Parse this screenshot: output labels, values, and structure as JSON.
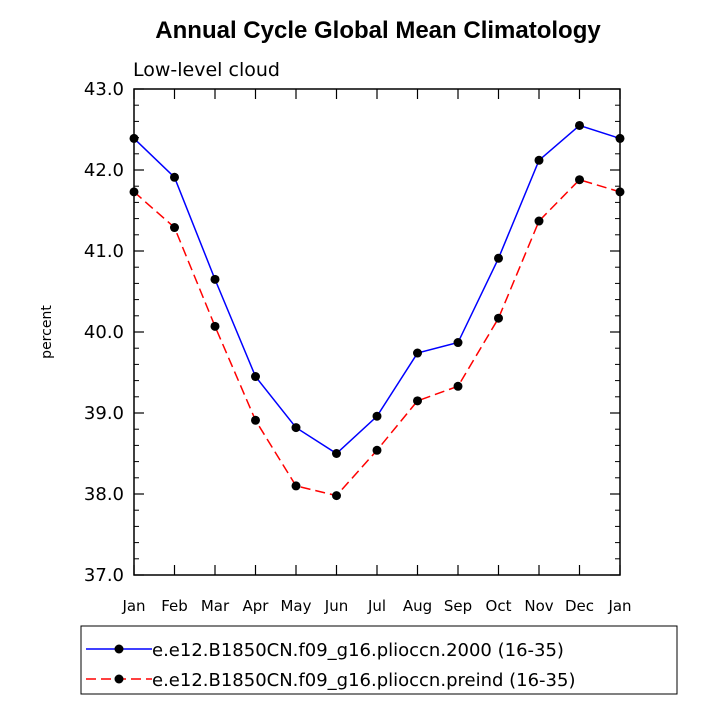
{
  "chart_data": {
    "type": "line",
    "title": "Annual Cycle Global Mean Climatology",
    "subtitle": "Low-level cloud",
    "ylabel": "percent",
    "xlabel": "",
    "ylim": [
      37.0,
      43.0
    ],
    "yticks": [
      "37.0",
      "38.0",
      "39.0",
      "40.0",
      "41.0",
      "42.0",
      "43.0"
    ],
    "categories": [
      "Jan",
      "Feb",
      "Mar",
      "Apr",
      "May",
      "Jun",
      "Jul",
      "Aug",
      "Sep",
      "Oct",
      "Nov",
      "Dec",
      "Jan"
    ],
    "series": [
      {
        "name": "e.e12.B1850CN.f09_g16.plioccn.2000 (16-35)",
        "color": "#0000ff",
        "dash": "solid",
        "values": [
          42.39,
          41.91,
          40.65,
          39.45,
          38.82,
          38.5,
          38.96,
          39.74,
          39.87,
          40.91,
          42.12,
          42.55,
          42.39
        ]
      },
      {
        "name": "e.e12.B1850CN.f09_g16.plioccn.preind (16-35)",
        "color": "#ff0000",
        "dash": "dashed",
        "values": [
          41.73,
          41.29,
          40.07,
          38.91,
          38.1,
          37.98,
          38.54,
          39.15,
          39.33,
          40.17,
          41.37,
          41.88,
          41.73
        ]
      }
    ],
    "legend_position": "bottom"
  }
}
